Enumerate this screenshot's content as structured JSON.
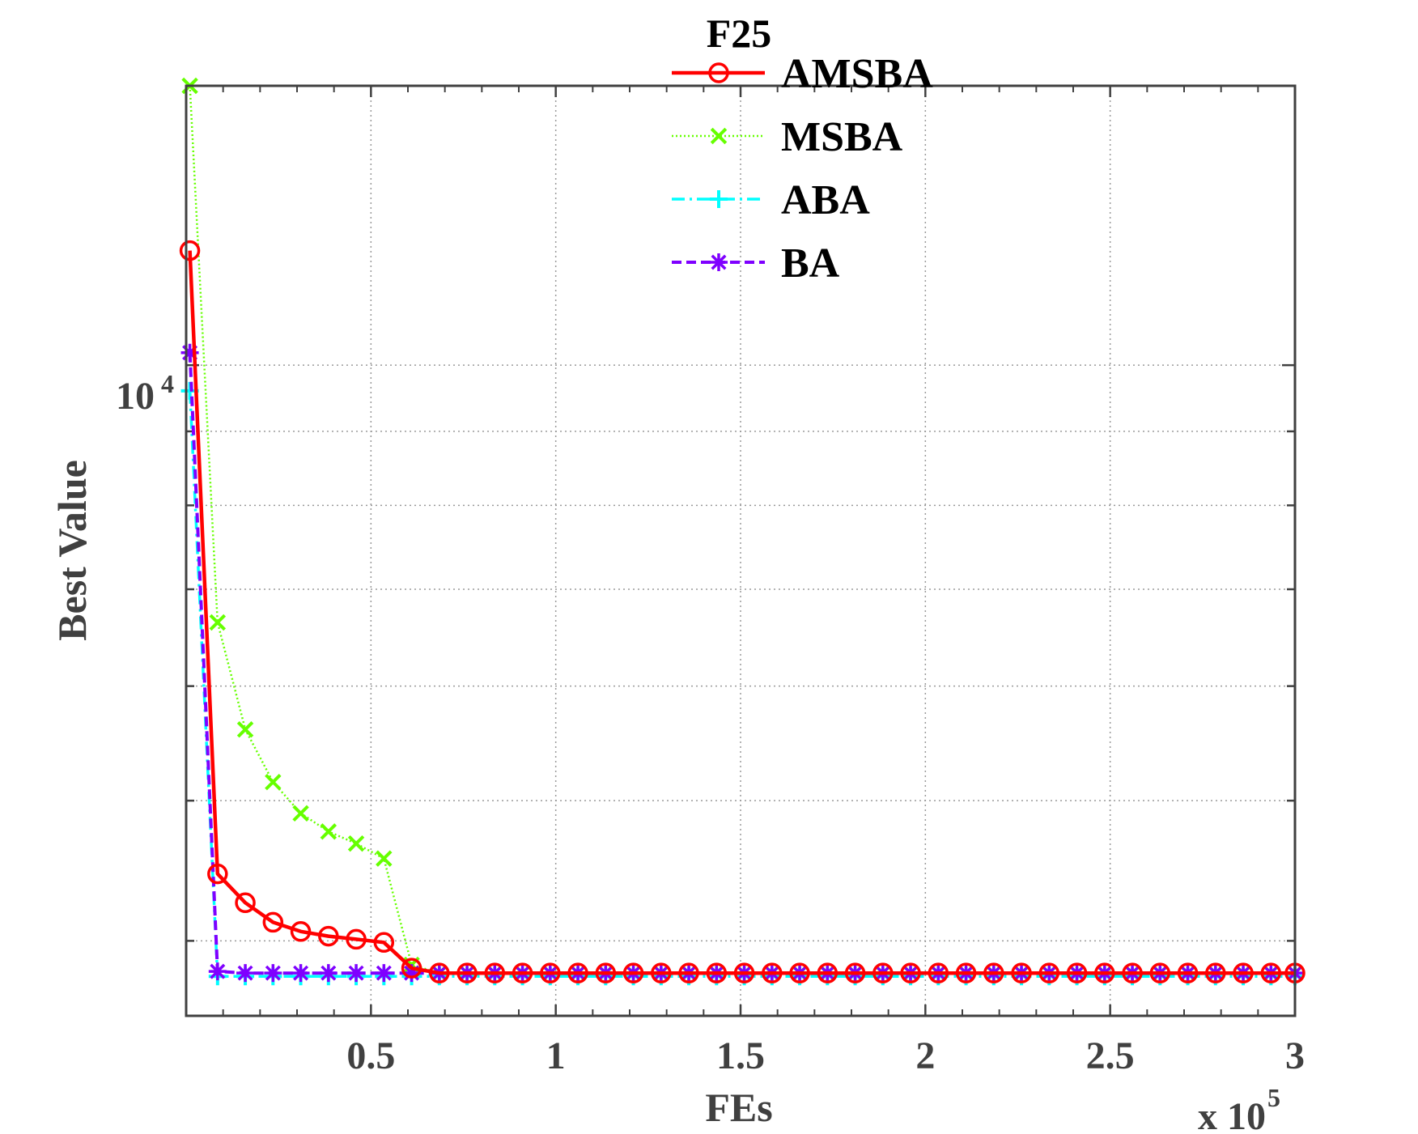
{
  "chart_data": {
    "type": "line",
    "title": "F25",
    "xlabel": "FEs",
    "ylabel": "Best Value",
    "x_multiplier": "x 10^5",
    "x_multiplier_base": "x 10",
    "x_multiplier_exp": "5",
    "y_scale": "log",
    "y_tick_label_base": "10",
    "y_tick_label_exp": "4",
    "y_tick_value": 10000,
    "xlim": [
      0,
      300000
    ],
    "ylim": [
      3550,
      15600
    ],
    "x_ticks": [
      50000,
      100000,
      150000,
      200000,
      250000,
      300000
    ],
    "x_tick_labels": [
      "0.5",
      "1",
      "1.5",
      "2",
      "2.5",
      "3"
    ],
    "grid": true,
    "legend_position": "top-center",
    "x": [
      1000,
      8500,
      16000,
      23500,
      31000,
      38500,
      46000,
      53500,
      61000,
      68500,
      76000,
      83500,
      91000,
      98500,
      106000,
      113500,
      121000,
      128500,
      136000,
      143500,
      151000,
      158500,
      166000,
      173500,
      181000,
      188500,
      196000,
      203500,
      211000,
      218500,
      226000,
      233500,
      241000,
      248500,
      256000,
      263500,
      271000,
      278500,
      286000,
      293500,
      300000
    ],
    "series": [
      {
        "name": "AMSBA",
        "color": "#ff0000",
        "line_style": "solid",
        "marker": "circle",
        "values": [
          12000,
          4450,
          4250,
          4120,
          4060,
          4030,
          4010,
          3990,
          3830,
          3800,
          3800,
          3800,
          3800,
          3800,
          3800,
          3800,
          3800,
          3800,
          3800,
          3800,
          3800,
          3800,
          3800,
          3800,
          3800,
          3800,
          3800,
          3800,
          3800,
          3800,
          3800,
          3800,
          3800,
          3800,
          3800,
          3800,
          3800,
          3800,
          3800,
          3800,
          3800
        ]
      },
      {
        "name": "MSBA",
        "color": "#66ff00",
        "line_style": "dotted",
        "marker": "x",
        "values": [
          15600,
          6640,
          5600,
          5150,
          4900,
          4760,
          4670,
          4560,
          3850,
          3800,
          3800,
          3800,
          3800,
          3800,
          3800,
          3800,
          3800,
          3800,
          3800,
          3800,
          3800,
          3800,
          3800,
          3800,
          3800,
          3800,
          3800,
          3800,
          3800,
          3800,
          3800,
          3800,
          3800,
          3800,
          3800,
          3800,
          3800,
          3800,
          3800,
          3800,
          3800
        ]
      },
      {
        "name": "ABA",
        "color": "#00ffff",
        "line_style": "dashdot",
        "marker": "plus",
        "values": [
          9600,
          3780,
          3780,
          3780,
          3780,
          3780,
          3780,
          3780,
          3780,
          3780,
          3780,
          3780,
          3780,
          3780,
          3780,
          3780,
          3780,
          3780,
          3780,
          3780,
          3780,
          3780,
          3780,
          3780,
          3780,
          3780,
          3780,
          3780,
          3780,
          3780,
          3780,
          3780,
          3780,
          3780,
          3780,
          3780,
          3780,
          3780,
          3780,
          3780,
          3780
        ]
      },
      {
        "name": "BA",
        "color": "#7f00ff",
        "line_style": "dashed",
        "marker": "asterisk",
        "values": [
          10200,
          3810,
          3800,
          3800,
          3800,
          3800,
          3800,
          3800,
          3800,
          3800,
          3800,
          3800,
          3800,
          3800,
          3800,
          3800,
          3800,
          3800,
          3800,
          3800,
          3800,
          3800,
          3800,
          3800,
          3800,
          3800,
          3800,
          3800,
          3800,
          3800,
          3800,
          3800,
          3800,
          3800,
          3800,
          3800,
          3800,
          3800,
          3800,
          3800,
          3800
        ]
      }
    ]
  }
}
